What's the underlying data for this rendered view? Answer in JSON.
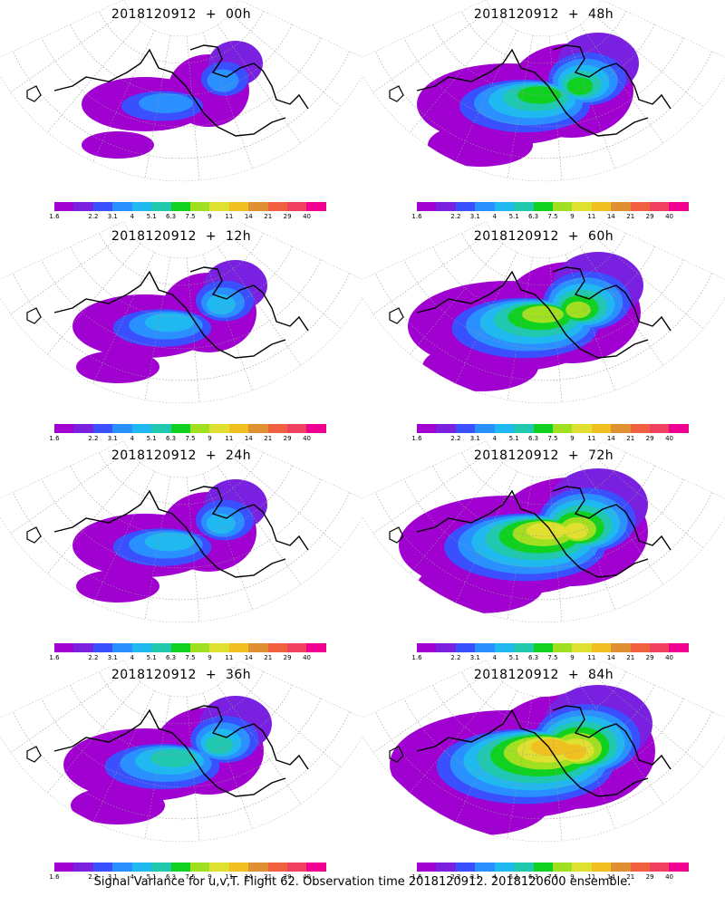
{
  "colorbar": {
    "colors": [
      "#a000d0",
      "#7a20e0",
      "#3a50ff",
      "#2a90ff",
      "#20b8f0",
      "#20c8b0",
      "#10d020",
      "#a0e020",
      "#e0e030",
      "#f0c020",
      "#e09030",
      "#f06040",
      "#f04060",
      "#f00090"
    ],
    "ticks": [
      "1.6",
      "2.2",
      "3.1",
      "4",
      "5.1",
      "6.3",
      "7.5",
      "9",
      "11",
      "14",
      "21",
      "29",
      "40"
    ]
  },
  "panels": [
    {
      "title": "2018120912  +  00h",
      "level": 0
    },
    {
      "title": "2018120912  +  48h",
      "level": 3
    },
    {
      "title": "2018120912  +  12h",
      "level": 1
    },
    {
      "title": "2018120912  +  60h",
      "level": 4
    },
    {
      "title": "2018120912  +  24h",
      "level": 1
    },
    {
      "title": "2018120912  +  72h",
      "level": 5
    },
    {
      "title": "2018120912  +  36h",
      "level": 2
    },
    {
      "title": "2018120912  +  84h",
      "level": 6
    }
  ],
  "caption": "Signal Variance for u,v,T. Flight 62. Observation time 2018120912. 2018120600 ensemble."
}
